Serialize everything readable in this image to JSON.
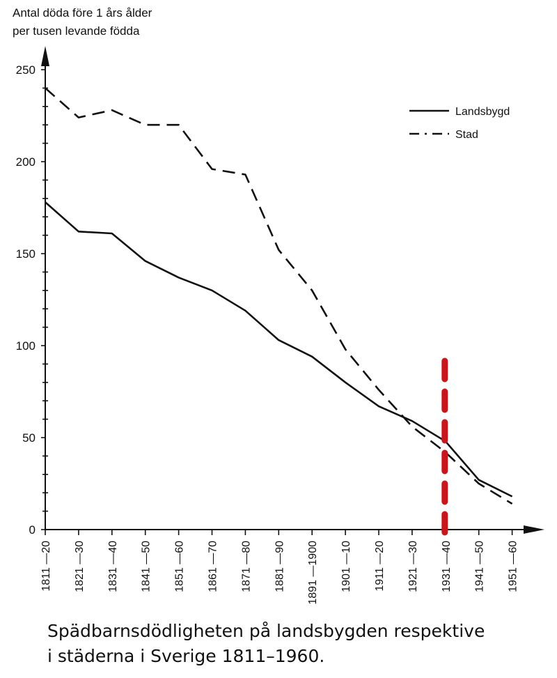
{
  "chart_data": {
    "type": "line",
    "ylabel_lines": [
      "Antal döda före 1 års ålder",
      "per tusen levande födda"
    ],
    "xlabel": "",
    "categories": [
      "1811 —20",
      "1821 —30",
      "1831 —40",
      "1841 —50",
      "1851 —60",
      "1861 —70",
      "1871 —80",
      "1881 —90",
      "1891 —1900",
      "1901 —10",
      "1911 —20",
      "1921 —30",
      "1931 —40",
      "1941 —50",
      "1951 —60"
    ],
    "ylim": [
      0,
      250
    ],
    "yticks": [
      0,
      50,
      100,
      150,
      200,
      250
    ],
    "minor_tick_step": 10,
    "series": [
      {
        "name": "Landsbygd",
        "style": "solid",
        "values": [
          178,
          162,
          161,
          146,
          137,
          130,
          119,
          103,
          94,
          80,
          67,
          59,
          48,
          27,
          18
        ]
      },
      {
        "name": "Stad",
        "style": "dashed",
        "values": [
          240,
          224,
          228,
          220,
          220,
          196,
          193,
          152,
          130,
          98,
          76,
          56,
          42,
          25,
          14
        ]
      }
    ],
    "legend_position": "top-right",
    "annotation": {
      "type": "vertical-dashed-line",
      "category": "1931 —40",
      "color": "#c8161d"
    },
    "grid": false
  },
  "caption": {
    "line1": "Spädbarnsdödligheten på landsbygden respektive",
    "line2": "i städerna i Sverige 1811–1960."
  }
}
